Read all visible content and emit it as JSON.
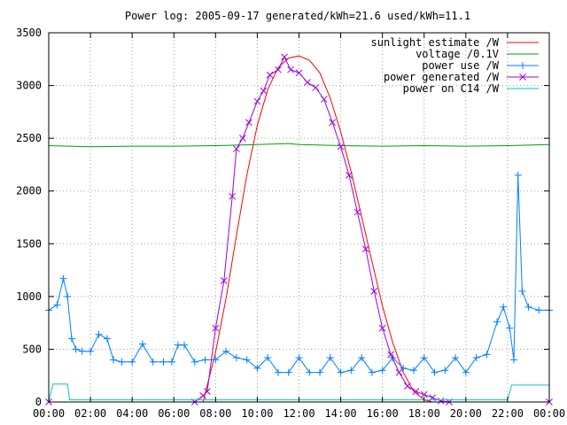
{
  "chart_data": {
    "type": "line",
    "title": "Power log: 2005-09-17 generated/kWh=21.6 used/kWh=11.1",
    "xlabel": "",
    "ylabel": "",
    "xlim": [
      "00:00",
      "24:00"
    ],
    "ylim": [
      0,
      3500
    ],
    "x_ticks": [
      "00:00",
      "02:00",
      "04:00",
      "06:00",
      "08:00",
      "10:00",
      "12:00",
      "14:00",
      "16:00",
      "18:00",
      "20:00",
      "22:00",
      "00:00"
    ],
    "y_ticks": [
      "0",
      "500",
      "1000",
      "1500",
      "2000",
      "2500",
      "3000",
      "3500"
    ],
    "grid": true,
    "legend_position": "top-right",
    "series": [
      {
        "name": "sunlight estimate /W",
        "color": "#ff0000",
        "marker": "none",
        "x_hours": [
          7.4,
          8.0,
          8.5,
          9.0,
          9.5,
          10.0,
          10.5,
          11.0,
          11.5,
          12.0,
          12.5,
          13.0,
          13.5,
          14.0,
          14.5,
          15.0,
          15.5,
          16.0,
          16.5,
          17.0,
          17.5,
          18.0,
          18.4
        ],
        "values": [
          0,
          470,
          980,
          1580,
          2150,
          2620,
          2960,
          3170,
          3260,
          3280,
          3240,
          3120,
          2880,
          2560,
          2180,
          1760,
          1330,
          910,
          560,
          280,
          100,
          20,
          0
        ]
      },
      {
        "name": "voltage /0.1V",
        "color": "#00a000",
        "marker": "none",
        "x_hours": [
          0,
          2,
          4,
          6,
          8,
          10,
          11.5,
          12,
          14,
          16,
          18,
          20,
          22,
          24
        ],
        "values": [
          2430,
          2420,
          2425,
          2425,
          2430,
          2440,
          2450,
          2440,
          2430,
          2425,
          2430,
          2425,
          2430,
          2440
        ]
      },
      {
        "name": "power use /W",
        "color": "#0080ff",
        "marker": "plus",
        "x_hours": [
          0.0,
          0.4,
          0.7,
          0.9,
          1.1,
          1.3,
          1.6,
          2.0,
          2.4,
          2.8,
          3.1,
          3.5,
          4.0,
          4.5,
          5.0,
          5.5,
          5.9,
          6.2,
          6.5,
          7.0,
          7.5,
          8.0,
          8.5,
          9.0,
          9.5,
          10.0,
          10.5,
          11.0,
          11.5,
          12.0,
          12.5,
          13.0,
          13.5,
          14.0,
          14.5,
          15.0,
          15.5,
          16.0,
          16.5,
          17.0,
          17.5,
          18.0,
          18.5,
          19.0,
          19.5,
          20.0,
          20.5,
          21.0,
          21.5,
          21.8,
          22.1,
          22.3,
          22.5,
          22.7,
          23.0,
          23.5,
          24.0
        ],
        "values": [
          870,
          920,
          1170,
          1000,
          600,
          500,
          480,
          480,
          640,
          600,
          400,
          380,
          380,
          550,
          380,
          380,
          380,
          540,
          540,
          380,
          400,
          400,
          480,
          420,
          400,
          320,
          420,
          280,
          280,
          420,
          280,
          280,
          420,
          280,
          300,
          420,
          280,
          300,
          420,
          320,
          300,
          420,
          280,
          300,
          420,
          280,
          420,
          450,
          760,
          900,
          700,
          400,
          2150,
          1050,
          900,
          870,
          870
        ]
      },
      {
        "name": "power generated /W",
        "color": "#a000e0",
        "marker": "x",
        "x_hours": [
          0,
          7.0,
          7.4,
          7.6,
          8.0,
          8.4,
          8.8,
          9.0,
          9.3,
          9.6,
          10.0,
          10.3,
          10.6,
          11.0,
          11.3,
          11.6,
          12.0,
          12.4,
          12.8,
          13.2,
          13.6,
          14.0,
          14.4,
          14.8,
          15.2,
          15.6,
          16.0,
          16.4,
          16.8,
          17.2,
          17.6,
          18.0,
          18.4,
          18.8,
          19.2,
          24.0
        ],
        "values": [
          0,
          0,
          60,
          100,
          700,
          1150,
          1950,
          2400,
          2500,
          2650,
          2850,
          2950,
          3100,
          3150,
          3270,
          3150,
          3120,
          3030,
          2980,
          2870,
          2650,
          2420,
          2150,
          1800,
          1450,
          1050,
          700,
          450,
          280,
          150,
          100,
          70,
          40,
          10,
          0,
          0
        ]
      },
      {
        "name": "power on C14 /W",
        "color": "#00c8c8",
        "marker": "none",
        "x_hours": [
          0,
          0.2,
          0.9,
          1.0,
          22.0,
          22.2,
          24.0
        ],
        "values": [
          0,
          170,
          170,
          20,
          20,
          160,
          160
        ]
      }
    ]
  }
}
